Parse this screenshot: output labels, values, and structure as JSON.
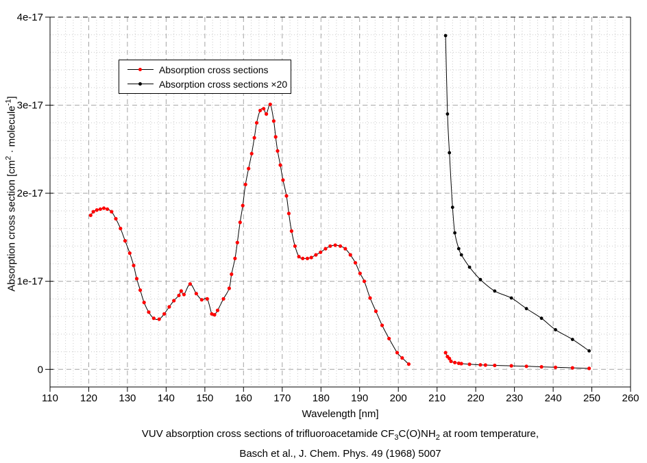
{
  "figure": {
    "background": "#ffffff",
    "x_axis_title": "Wavelength [nm]",
    "y_axis_title": {
      "pre": "Absorption cross section [cm",
      "sup1": "2",
      "mid": " · molecule",
      "sup2": "-1",
      "post": "]"
    },
    "caption": {
      "line1_pre": "VUV absorption cross sections of trifluoroacetamide  CF",
      "line1_sub1": "3",
      "line1_mid": "C(O)NH",
      "line1_sub2": "2",
      "line1_post": " at room temperature,",
      "line2": "Basch et al., J. Chem. Phys. 49 (1968) 5007"
    }
  },
  "legend": {
    "position": "upper-left-inside",
    "entries": [
      {
        "label": "Absorption cross sections",
        "marker_color": "#ff0000",
        "line_color": "#000000"
      },
      {
        "label": "Absorption cross sections ×20",
        "marker_color": "#000000",
        "line_color": "#000000"
      }
    ]
  },
  "colors": {
    "axis": "#000000",
    "grid_major": "#a3a3a3",
    "grid_minor": "#c8c8c8",
    "series1": "#ff0000",
    "series2": "#000000"
  },
  "chart_data": {
    "type": "line",
    "title": "",
    "xlabel": "Wavelength [nm]",
    "ylabel": "Absorption cross section [cm^2 · molecule^-1]",
    "value_unit": "1e-17 cm^2/molecule (y values below are in units of 1e-17)",
    "xlim": [
      110,
      260
    ],
    "ylim": [
      -0.2,
      4.0
    ],
    "xticks": [
      110,
      120,
      130,
      140,
      150,
      160,
      170,
      180,
      190,
      200,
      210,
      220,
      230,
      240,
      250,
      260
    ],
    "yticks": [
      {
        "v": 0,
        "label": "0"
      },
      {
        "v": 1,
        "label": "1e-17"
      },
      {
        "v": 2,
        "label": "2e-17"
      },
      {
        "v": 3,
        "label": "3e-17"
      },
      {
        "v": 4,
        "label": "4e-17"
      }
    ],
    "grid": {
      "major": "dashed",
      "minor": "dotted",
      "minor_x_step": 2,
      "minor_y_step": 0.2
    },
    "series": [
      {
        "name": "Absorption cross sections",
        "marker_color": "#ff0000",
        "line_color": "#000000",
        "segments": [
          [
            [
              120.5,
              1.75
            ],
            [
              121.2,
              1.79
            ],
            [
              122.1,
              1.81
            ],
            [
              123.0,
              1.82
            ],
            [
              123.9,
              1.83
            ],
            [
              124.8,
              1.82
            ],
            [
              125.9,
              1.79
            ],
            [
              127.0,
              1.71
            ],
            [
              128.2,
              1.6
            ],
            [
              129.4,
              1.46
            ],
            [
              130.6,
              1.32
            ],
            [
              131.6,
              1.18
            ],
            [
              132.4,
              1.03
            ],
            [
              133.3,
              0.9
            ],
            [
              134.3,
              0.76
            ],
            [
              135.5,
              0.65
            ],
            [
              136.8,
              0.58
            ],
            [
              138.2,
              0.57
            ],
            [
              139.5,
              0.63
            ],
            [
              140.8,
              0.71
            ],
            [
              142.0,
              0.78
            ],
            [
              143.3,
              0.84
            ],
            [
              143.9,
              0.89
            ],
            [
              144.6,
              0.85
            ],
            [
              146.2,
              0.97
            ],
            [
              147.8,
              0.86
            ],
            [
              149.2,
              0.79
            ],
            [
              150.6,
              0.8
            ],
            [
              151.8,
              0.63
            ],
            [
              152.5,
              0.62
            ],
            [
              153.3,
              0.67
            ],
            [
              154.8,
              0.8
            ],
            [
              156.3,
              0.92
            ],
            [
              156.9,
              1.08
            ],
            [
              157.8,
              1.26
            ],
            [
              158.4,
              1.44
            ],
            [
              159.1,
              1.67
            ],
            [
              159.8,
              1.86
            ],
            [
              160.5,
              2.1
            ],
            [
              161.3,
              2.28
            ],
            [
              162.1,
              2.45
            ],
            [
              162.8,
              2.63
            ],
            [
              163.4,
              2.8
            ],
            [
              164.3,
              2.94
            ],
            [
              165.2,
              2.96
            ],
            [
              165.9,
              2.9
            ],
            [
              166.9,
              3.01
            ],
            [
              167.8,
              2.82
            ],
            [
              168.3,
              2.64
            ],
            [
              168.8,
              2.48
            ],
            [
              169.5,
              2.32
            ],
            [
              170.2,
              2.15
            ],
            [
              171.1,
              1.97
            ],
            [
              171.7,
              1.77
            ],
            [
              172.4,
              1.57
            ],
            [
              173.3,
              1.4
            ],
            [
              174.3,
              1.28
            ],
            [
              175.3,
              1.26
            ],
            [
              176.5,
              1.26
            ],
            [
              177.5,
              1.27
            ],
            [
              178.7,
              1.3
            ],
            [
              179.9,
              1.33
            ],
            [
              181.2,
              1.37
            ],
            [
              182.4,
              1.4
            ],
            [
              183.7,
              1.41
            ],
            [
              185.0,
              1.4
            ],
            [
              186.3,
              1.37
            ],
            [
              187.6,
              1.3
            ],
            [
              188.9,
              1.21
            ],
            [
              190.1,
              1.09
            ],
            [
              191.2,
              1.0
            ],
            [
              192.7,
              0.81
            ],
            [
              194.2,
              0.66
            ],
            [
              195.8,
              0.5
            ],
            [
              197.6,
              0.35
            ],
            [
              199.7,
              0.19
            ],
            [
              201.0,
              0.13
            ],
            [
              202.7,
              0.06
            ]
          ],
          [
            [
              212.2,
              0.19
            ],
            [
              212.7,
              0.145
            ],
            [
              213.2,
              0.123
            ],
            [
              213.6,
              0.092
            ],
            [
              214.6,
              0.078
            ],
            [
              215.6,
              0.069
            ],
            [
              216.3,
              0.065
            ],
            [
              218.4,
              0.058
            ],
            [
              221.2,
              0.051
            ],
            [
              222.5,
              0.049
            ],
            [
              224.9,
              0.045
            ],
            [
              229.2,
              0.04
            ],
            [
              233.1,
              0.035
            ],
            [
              237.0,
              0.029
            ],
            [
              240.6,
              0.023
            ],
            [
              245.0,
              0.017
            ],
            [
              249.3,
              0.011
            ]
          ]
        ]
      },
      {
        "name": "Absorption cross sections ×20",
        "marker_color": "#000000",
        "line_color": "#000000",
        "segments": [
          [
            [
              212.2,
              3.79
            ],
            [
              212.7,
              2.9
            ],
            [
              213.2,
              2.46
            ],
            [
              214.0,
              1.84
            ],
            [
              214.6,
              1.55
            ],
            [
              215.6,
              1.37
            ],
            [
              216.3,
              1.3
            ],
            [
              218.4,
              1.16
            ],
            [
              221.2,
              1.02
            ],
            [
              224.9,
              0.89
            ],
            [
              229.2,
              0.81
            ],
            [
              233.1,
              0.69
            ],
            [
              237.0,
              0.58
            ],
            [
              240.6,
              0.45
            ],
            [
              245.0,
              0.34
            ],
            [
              249.3,
              0.21
            ]
          ]
        ]
      }
    ]
  }
}
